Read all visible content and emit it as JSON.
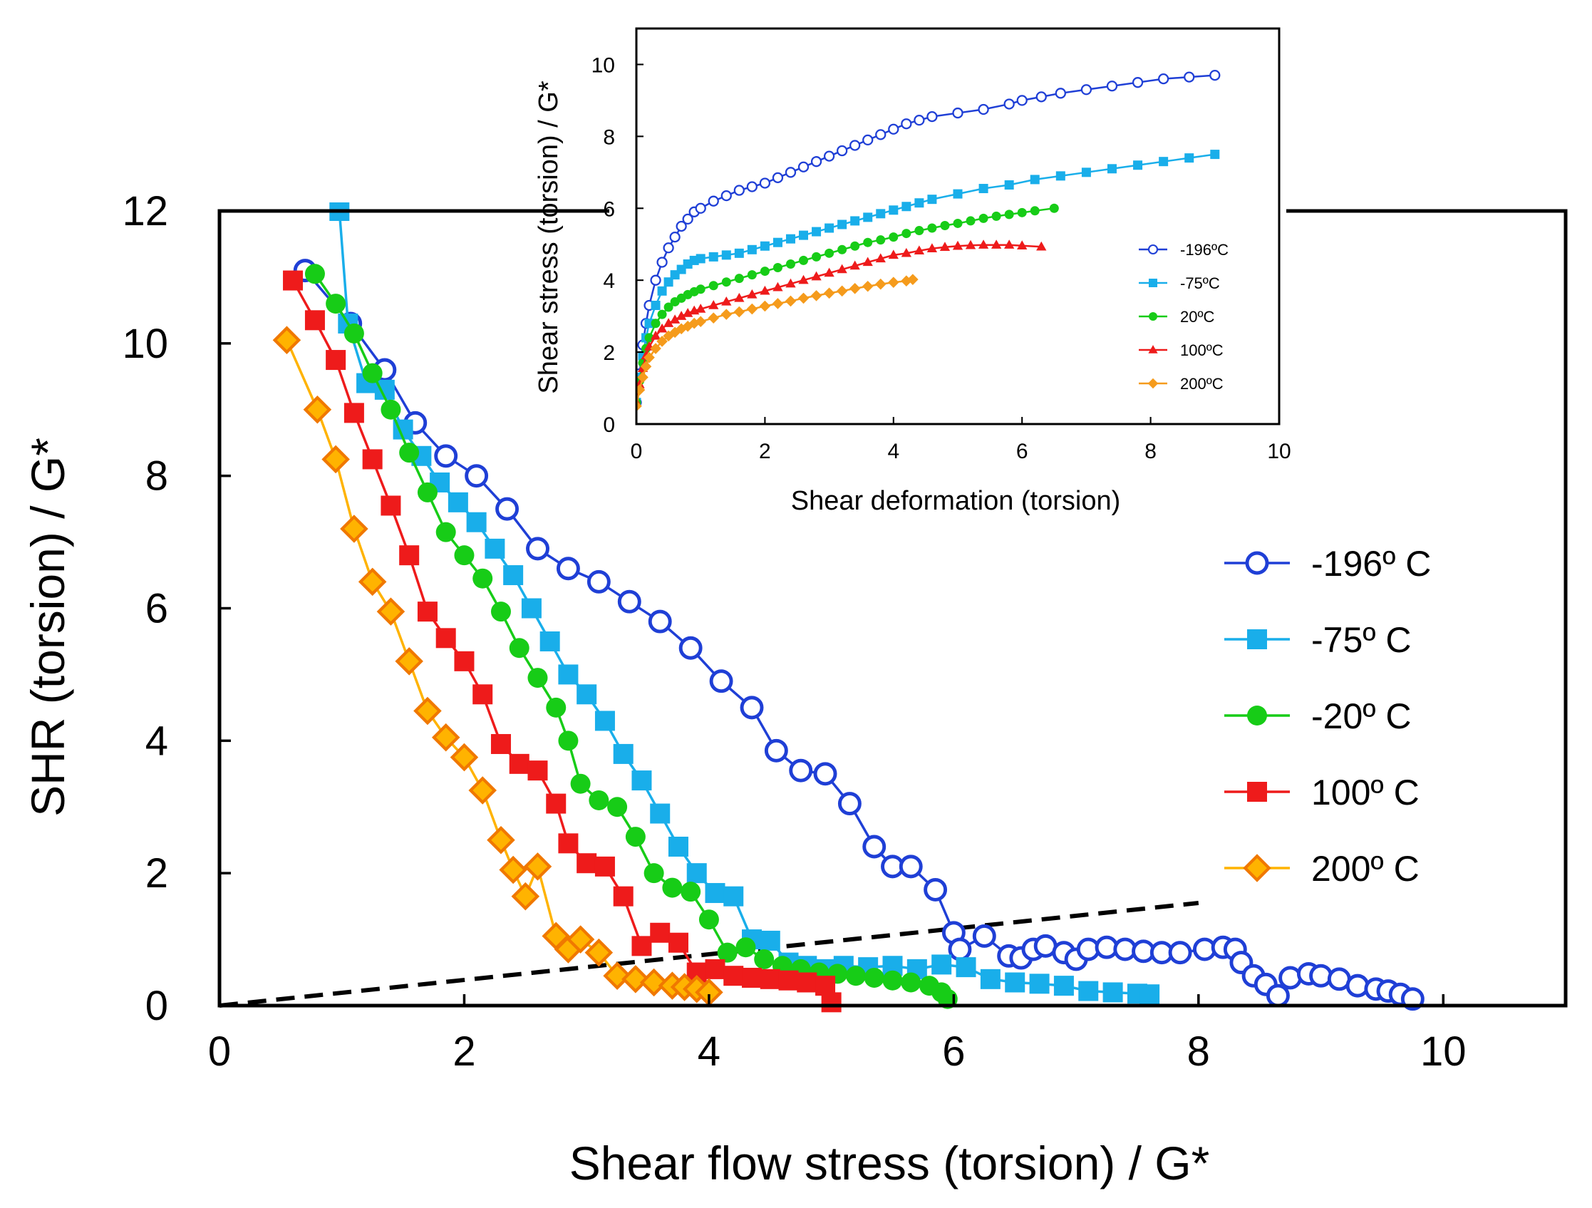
{
  "chart_data": [
    {
      "id": "main",
      "type": "line",
      "title": "",
      "xlabel": "Shear flow stress (torsion)  / G*",
      "ylabel": "SHR (torsion)  / G*",
      "xlim": [
        0,
        11
      ],
      "ylim": [
        0,
        12
      ],
      "xticks": [
        0,
        2,
        4,
        6,
        8,
        10
      ],
      "yticks": [
        0,
        2,
        4,
        6,
        8,
        10,
        12
      ],
      "legend_position": "right",
      "reference_line": {
        "name": "dashed reference",
        "x": [
          0,
          8
        ],
        "y": [
          0,
          1.55
        ],
        "color": "#000000"
      },
      "series": [
        {
          "name": "-196º C",
          "color": "#1f3fd6",
          "marker": "open-circle",
          "x": [
            0.7,
            1.07,
            1.35,
            1.6,
            1.85,
            2.1,
            2.35,
            2.6,
            2.85,
            3.1,
            3.35,
            3.6,
            3.85,
            4.1,
            4.35,
            4.55,
            4.75,
            4.95,
            5.15,
            5.35,
            5.5,
            5.65,
            5.85,
            6.0,
            6.05,
            6.25,
            6.45,
            6.55,
            6.65,
            6.75,
            6.9,
            7.0,
            7.1,
            7.25,
            7.4,
            7.55,
            7.7,
            7.85,
            8.05,
            8.2,
            8.3,
            8.35,
            8.45,
            8.55,
            8.65,
            8.75,
            8.9,
            9.0,
            9.15,
            9.3,
            9.45,
            9.55,
            9.65,
            9.75
          ],
          "y": [
            11.1,
            10.3,
            9.6,
            8.8,
            8.3,
            8.0,
            7.5,
            6.9,
            6.6,
            6.4,
            6.1,
            5.8,
            5.4,
            4.9,
            4.5,
            3.85,
            3.55,
            3.5,
            3.05,
            2.4,
            2.1,
            2.1,
            1.75,
            1.1,
            0.85,
            1.05,
            0.75,
            0.72,
            0.85,
            0.9,
            0.8,
            0.7,
            0.85,
            0.88,
            0.85,
            0.82,
            0.8,
            0.8,
            0.85,
            0.88,
            0.85,
            0.65,
            0.45,
            0.32,
            0.15,
            0.42,
            0.48,
            0.45,
            0.4,
            0.3,
            0.25,
            0.22,
            0.17,
            0.1
          ]
        },
        {
          "name": "-75º C",
          "color": "#19aeea",
          "marker": "square",
          "x": [
            0.98,
            1.05,
            1.2,
            1.35,
            1.5,
            1.65,
            1.8,
            1.95,
            2.1,
            2.25,
            2.4,
            2.55,
            2.7,
            2.85,
            3.0,
            3.15,
            3.3,
            3.45,
            3.6,
            3.75,
            3.9,
            4.05,
            4.2,
            4.35,
            4.5,
            4.65,
            4.8,
            4.95,
            5.1,
            5.3,
            5.5,
            5.7,
            5.9,
            6.1,
            6.3,
            6.5,
            6.7,
            6.9,
            7.1,
            7.3,
            7.5,
            7.6
          ],
          "y": [
            12.0,
            10.3,
            9.4,
            9.3,
            8.7,
            8.3,
            7.9,
            7.6,
            7.3,
            6.9,
            6.5,
            6.0,
            5.5,
            5.0,
            4.7,
            4.3,
            3.8,
            3.4,
            2.9,
            2.4,
            2.0,
            1.7,
            1.65,
            1.0,
            0.98,
            0.65,
            0.6,
            0.55,
            0.6,
            0.58,
            0.6,
            0.55,
            0.62,
            0.58,
            0.4,
            0.35,
            0.33,
            0.3,
            0.22,
            0.2,
            0.18,
            0.17
          ]
        },
        {
          "name": "-20º C",
          "color": "#17cc17",
          "marker": "circle",
          "x": [
            0.78,
            0.95,
            1.1,
            1.25,
            1.4,
            1.55,
            1.7,
            1.85,
            2.0,
            2.15,
            2.3,
            2.45,
            2.6,
            2.75,
            2.85,
            2.95,
            3.1,
            3.25,
            3.4,
            3.55,
            3.7,
            3.85,
            4.0,
            4.15,
            4.3,
            4.45,
            4.6,
            4.75,
            4.9,
            5.05,
            5.2,
            5.35,
            5.5,
            5.65,
            5.8,
            5.9,
            5.95
          ],
          "y": [
            11.05,
            10.6,
            10.15,
            9.55,
            9.0,
            8.35,
            7.75,
            7.15,
            6.8,
            6.45,
            5.95,
            5.4,
            4.95,
            4.5,
            4.0,
            3.35,
            3.1,
            3.0,
            2.55,
            2.0,
            1.78,
            1.72,
            1.3,
            0.8,
            0.88,
            0.7,
            0.6,
            0.55,
            0.5,
            0.48,
            0.45,
            0.42,
            0.38,
            0.35,
            0.3,
            0.2,
            0.1
          ]
        },
        {
          "name": "100º C",
          "color": "#ee1b1b",
          "marker": "square",
          "x": [
            0.6,
            0.78,
            0.95,
            1.1,
            1.25,
            1.4,
            1.55,
            1.7,
            1.85,
            2.0,
            2.15,
            2.3,
            2.45,
            2.6,
            2.75,
            2.85,
            3.0,
            3.15,
            3.3,
            3.45,
            3.6,
            3.75,
            3.9,
            4.05,
            4.2,
            4.35,
            4.5,
            4.65,
            4.8,
            4.95,
            5.0
          ],
          "y": [
            10.95,
            10.35,
            9.75,
            8.95,
            8.25,
            7.55,
            6.8,
            5.95,
            5.55,
            5.2,
            4.7,
            3.95,
            3.65,
            3.55,
            3.05,
            2.45,
            2.15,
            2.1,
            1.65,
            0.9,
            1.1,
            0.95,
            0.5,
            0.55,
            0.45,
            0.42,
            0.4,
            0.38,
            0.35,
            0.3,
            0.05
          ]
        },
        {
          "name": "200º C",
          "color": "#ffb300",
          "marker": "diamond",
          "edge": "#f07800",
          "x": [
            0.55,
            0.8,
            0.95,
            1.1,
            1.25,
            1.4,
            1.55,
            1.7,
            1.85,
            2.0,
            2.15,
            2.3,
            2.4,
            2.5,
            2.6,
            2.75,
            2.85,
            2.95,
            3.1,
            3.25,
            3.4,
            3.55,
            3.7,
            3.8,
            3.9,
            4.0
          ],
          "y": [
            10.05,
            9.0,
            8.25,
            7.2,
            6.4,
            5.95,
            5.2,
            4.45,
            4.05,
            3.75,
            3.25,
            2.5,
            2.05,
            1.65,
            2.1,
            1.05,
            0.85,
            1.0,
            0.8,
            0.45,
            0.4,
            0.35,
            0.3,
            0.28,
            0.25,
            0.2
          ]
        }
      ]
    },
    {
      "id": "inset",
      "type": "line",
      "title": "",
      "xlabel": "Shear deformation (torsion)",
      "ylabel": "Shear stress (torsion)  / G*",
      "xlim": [
        0,
        10
      ],
      "ylim": [
        0,
        11
      ],
      "xticks": [
        0,
        2,
        4,
        6,
        8,
        10
      ],
      "yticks": [
        0,
        2,
        4,
        6,
        8,
        10
      ],
      "legend_position": "bottom-right",
      "series": [
        {
          "name": "-196ºC",
          "color": "#1f3fd6",
          "marker": "open-circle",
          "x": [
            0.0,
            0.05,
            0.1,
            0.15,
            0.2,
            0.3,
            0.4,
            0.5,
            0.6,
            0.7,
            0.8,
            0.9,
            1.0,
            1.2,
            1.4,
            1.6,
            1.8,
            2.0,
            2.2,
            2.4,
            2.6,
            2.8,
            3.0,
            3.2,
            3.4,
            3.6,
            3.8,
            4.0,
            4.2,
            4.4,
            4.6,
            5.0,
            5.4,
            5.8,
            6.0,
            6.3,
            6.6,
            7.0,
            7.4,
            7.8,
            8.2,
            8.6,
            9.0
          ],
          "y": [
            0.6,
            1.4,
            2.2,
            2.8,
            3.3,
            4.0,
            4.5,
            4.9,
            5.2,
            5.5,
            5.7,
            5.9,
            6.0,
            6.2,
            6.35,
            6.5,
            6.6,
            6.7,
            6.85,
            7.0,
            7.15,
            7.3,
            7.45,
            7.6,
            7.75,
            7.9,
            8.05,
            8.2,
            8.35,
            8.45,
            8.55,
            8.65,
            8.75,
            8.9,
            9.0,
            9.1,
            9.2,
            9.3,
            9.4,
            9.5,
            9.6,
            9.65,
            9.7
          ]
        },
        {
          "name": "-75ºC",
          "color": "#19aeea",
          "marker": "square",
          "x": [
            0.0,
            0.05,
            0.1,
            0.15,
            0.2,
            0.3,
            0.4,
            0.5,
            0.6,
            0.7,
            0.8,
            0.9,
            1.0,
            1.2,
            1.4,
            1.6,
            1.8,
            2.0,
            2.2,
            2.4,
            2.6,
            2.8,
            3.0,
            3.2,
            3.4,
            3.6,
            3.8,
            4.0,
            4.2,
            4.4,
            4.6,
            5.0,
            5.4,
            5.8,
            6.2,
            6.6,
            7.0,
            7.4,
            7.8,
            8.2,
            8.6,
            9.0
          ],
          "y": [
            0.6,
            1.3,
            1.9,
            2.4,
            2.8,
            3.3,
            3.7,
            3.95,
            4.15,
            4.3,
            4.45,
            4.55,
            4.6,
            4.65,
            4.7,
            4.75,
            4.85,
            4.95,
            5.05,
            5.15,
            5.25,
            5.35,
            5.45,
            5.55,
            5.65,
            5.75,
            5.85,
            5.95,
            6.05,
            6.15,
            6.25,
            6.4,
            6.55,
            6.65,
            6.8,
            6.9,
            7.0,
            7.1,
            7.2,
            7.3,
            7.4,
            7.5
          ]
        },
        {
          "name": "20ºC",
          "color": "#17cc17",
          "marker": "circle",
          "x": [
            0.0,
            0.05,
            0.1,
            0.15,
            0.2,
            0.3,
            0.4,
            0.5,
            0.6,
            0.7,
            0.8,
            0.9,
            1.0,
            1.2,
            1.4,
            1.6,
            1.8,
            2.0,
            2.2,
            2.4,
            2.6,
            2.8,
            3.0,
            3.2,
            3.4,
            3.6,
            3.8,
            4.0,
            4.2,
            4.4,
            4.6,
            4.8,
            5.0,
            5.2,
            5.4,
            5.6,
            5.8,
            6.0,
            6.2,
            6.5
          ],
          "y": [
            0.6,
            1.2,
            1.7,
            2.1,
            2.4,
            2.8,
            3.05,
            3.25,
            3.4,
            3.5,
            3.6,
            3.68,
            3.75,
            3.85,
            3.95,
            4.05,
            4.15,
            4.25,
            4.35,
            4.45,
            4.55,
            4.65,
            4.75,
            4.85,
            4.95,
            5.05,
            5.12,
            5.2,
            5.3,
            5.38,
            5.45,
            5.52,
            5.58,
            5.65,
            5.72,
            5.78,
            5.83,
            5.88,
            5.93,
            6.0
          ]
        },
        {
          "name": "100ºC",
          "color": "#ee1b1b",
          "marker": "triangle",
          "x": [
            0.0,
            0.05,
            0.1,
            0.15,
            0.2,
            0.3,
            0.4,
            0.5,
            0.6,
            0.7,
            0.8,
            0.9,
            1.0,
            1.2,
            1.4,
            1.6,
            1.8,
            2.0,
            2.2,
            2.4,
            2.6,
            2.8,
            3.0,
            3.2,
            3.4,
            3.6,
            3.8,
            4.0,
            4.2,
            4.4,
            4.6,
            4.8,
            5.0,
            5.2,
            5.4,
            5.6,
            5.8,
            6.0,
            6.3
          ],
          "y": [
            0.6,
            1.1,
            1.55,
            1.9,
            2.15,
            2.45,
            2.65,
            2.8,
            2.9,
            3.0,
            3.08,
            3.15,
            3.2,
            3.3,
            3.4,
            3.5,
            3.6,
            3.7,
            3.8,
            3.9,
            4.0,
            4.1,
            4.2,
            4.3,
            4.4,
            4.5,
            4.6,
            4.7,
            4.75,
            4.82,
            4.88,
            4.92,
            4.95,
            4.97,
            4.98,
            4.98,
            4.98,
            4.96,
            4.93
          ]
        },
        {
          "name": "200ºC",
          "color": "#f59b1c",
          "marker": "diamond",
          "x": [
            0.0,
            0.05,
            0.1,
            0.15,
            0.2,
            0.3,
            0.4,
            0.5,
            0.6,
            0.7,
            0.8,
            0.9,
            1.0,
            1.2,
            1.4,
            1.6,
            1.8,
            2.0,
            2.2,
            2.4,
            2.6,
            2.8,
            3.0,
            3.2,
            3.4,
            3.6,
            3.8,
            4.0,
            4.2,
            4.3
          ],
          "y": [
            0.5,
            0.95,
            1.3,
            1.6,
            1.85,
            2.1,
            2.3,
            2.45,
            2.55,
            2.65,
            2.72,
            2.8,
            2.85,
            2.95,
            3.05,
            3.12,
            3.2,
            3.28,
            3.35,
            3.42,
            3.5,
            3.57,
            3.64,
            3.7,
            3.77,
            3.83,
            3.89,
            3.94,
            3.98,
            4.02
          ]
        }
      ]
    }
  ]
}
